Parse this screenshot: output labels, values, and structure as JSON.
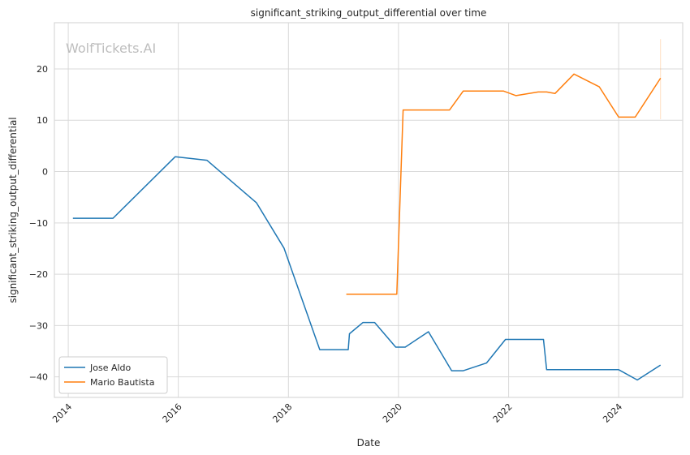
{
  "chart_data": {
    "type": "line",
    "title": "significant_striking_output_differential over time",
    "xlabel": "Date",
    "ylabel": "significant_striking_output_differential",
    "watermark": "WolfTickets.AI",
    "x_ticks": [
      "2014",
      "2016",
      "2018",
      "2020",
      "2022",
      "2024"
    ],
    "y_ticks": [
      "20",
      "10",
      "0",
      "−10",
      "−20",
      "−30",
      "−40"
    ],
    "xlim": [
      "2013-10-01",
      "2025-03-01"
    ],
    "ylim": [
      -44,
      29
    ],
    "grid": true,
    "legend_position": "lower-left",
    "series": [
      {
        "name": "Jose Aldo",
        "color": "#1f77b4",
        "points": [
          [
            "2014-02-01",
            -9.1
          ],
          [
            "2014-10-25",
            -9.1
          ],
          [
            "2015-12-12",
            2.9
          ],
          [
            "2016-07-09",
            2.2
          ],
          [
            "2017-06-03",
            -6.1
          ],
          [
            "2017-12-02",
            -14.9
          ],
          [
            "2018-07-28",
            -34.7
          ],
          [
            "2019-02-02",
            -34.7
          ],
          [
            "2019-02-10",
            -31.6
          ],
          [
            "2019-05-11",
            -29.4
          ],
          [
            "2019-07-27",
            -29.4
          ],
          [
            "2019-12-14",
            -34.2
          ],
          [
            "2020-02-15",
            -34.2
          ],
          [
            "2020-07-18",
            -31.2
          ],
          [
            "2020-12-19",
            -38.8
          ],
          [
            "2021-03-06",
            -38.8
          ],
          [
            "2021-08-07",
            -37.3
          ],
          [
            "2021-12-11",
            -32.7
          ],
          [
            "2022-04-30",
            -32.7
          ],
          [
            "2022-08-20",
            -32.7
          ],
          [
            "2022-09-10",
            -38.6
          ],
          [
            "2023-02-11",
            -38.6
          ],
          [
            "2024-01-01",
            -38.6
          ],
          [
            "2024-05-04",
            -40.6
          ],
          [
            "2024-10-05",
            -37.7
          ]
        ]
      },
      {
        "name": "Mario Bautista",
        "color": "#ff7f0e",
        "points": [
          [
            "2019-01-20",
            -23.9
          ],
          [
            "2019-12-21",
            -23.9
          ],
          [
            "2020-02-01",
            12.0
          ],
          [
            "2020-12-05",
            12.0
          ],
          [
            "2021-03-06",
            15.7
          ],
          [
            "2021-11-27",
            15.7
          ],
          [
            "2022-02-19",
            14.8
          ],
          [
            "2022-07-16",
            15.5
          ],
          [
            "2022-09-10",
            15.5
          ],
          [
            "2022-11-05",
            15.2
          ],
          [
            "2023-03-11",
            19.0
          ],
          [
            "2023-08-26",
            16.5
          ],
          [
            "2024-01-01",
            10.6
          ],
          [
            "2024-04-20",
            10.6
          ],
          [
            "2024-10-05",
            18.2
          ]
        ],
        "error_band": [
          10.2,
          25.8
        ]
      }
    ]
  }
}
